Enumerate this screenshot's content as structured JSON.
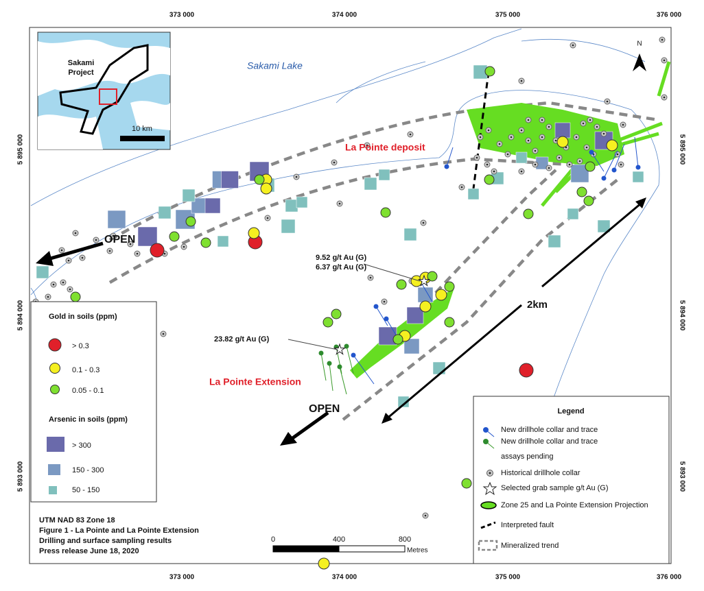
{
  "axes": {
    "x_top": [
      "373 000",
      "374 000",
      "375 000",
      "376 000"
    ],
    "x_bottom": [
      "373 000",
      "374 000",
      "375 000",
      "376 000"
    ],
    "y_left": [
      "5 895 000",
      "5 894 000",
      "5 893 000"
    ],
    "y_right": [
      "5 895 000",
      "5 894 000",
      "5 893 000"
    ]
  },
  "inset": {
    "project": [
      "Sakami",
      "Project"
    ],
    "scale": "10 km"
  },
  "map_labels": {
    "lake": "Sakami Lake",
    "deposit": "La Pointe deposit",
    "extension": "La Pointe Extension",
    "open_west": "OPEN",
    "open_south": "OPEN",
    "distance": "2km",
    "north": "N"
  },
  "annotations": [
    "9.52 g/t Au (G)",
    "6.37 g/t Au (G)",
    "23.82 g/t Au (G)"
  ],
  "soil_legend": {
    "gold_title": "Gold in soils (ppm)",
    "gold": [
      "> 0.3",
      "0.1 - 0.3",
      "0.05 - 0.1"
    ],
    "arsenic_title": "Arsenic in soils (ppm)",
    "arsenic": [
      "> 300",
      "150 - 300",
      "50 - 150"
    ]
  },
  "legend": {
    "title": "Legend",
    "items": [
      "New drillhole collar and trace",
      "New drillhole collar and trace",
      "assays pending",
      "Historical drillhole collar",
      "Selected grab sample g/t Au  (G)",
      "Zone 25 and La Pointe Extension Projection",
      "Interpreted fault",
      "Mineralized trend"
    ]
  },
  "info": [
    "UTM NAD 83 Zone 18",
    "Figure 1 - La Pointe and La Pointe Extension",
    "Drilling and surface sampling results",
    "Press release June 18, 2020"
  ],
  "scale_bar": {
    "ticks": [
      "0",
      "400",
      "800"
    ],
    "unit": "Metres"
  }
}
